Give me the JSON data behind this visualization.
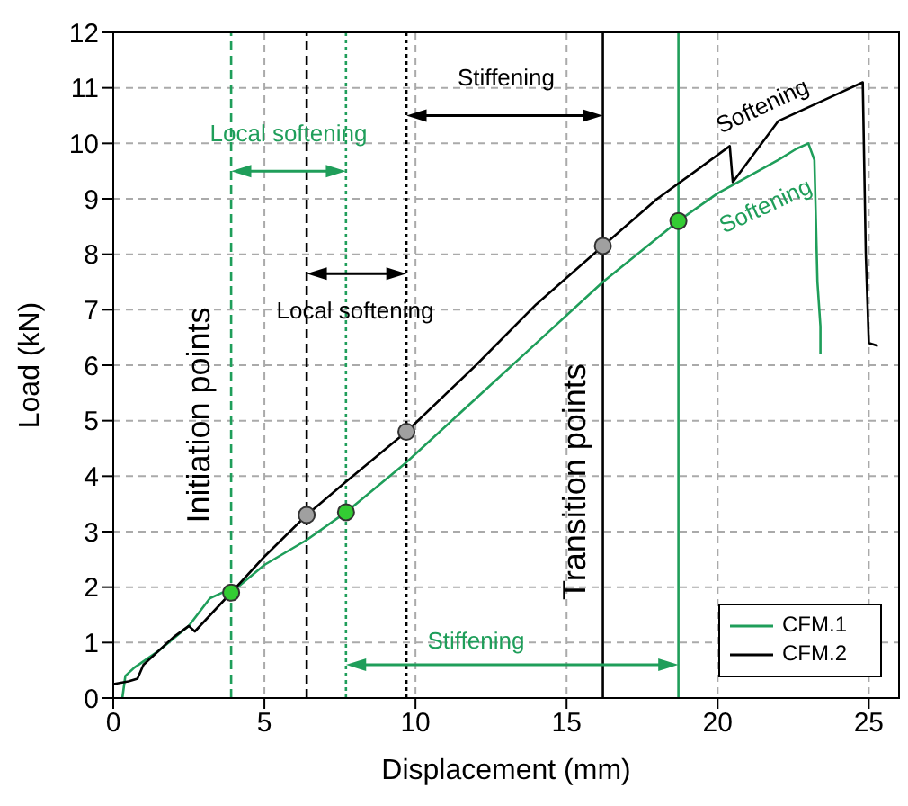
{
  "chart_data": {
    "type": "line",
    "xlabel": "Displacement (mm)",
    "ylabel": "Load (kN)",
    "xlim": [
      0,
      26
    ],
    "xticks": [
      0,
      5,
      10,
      15,
      20,
      25
    ],
    "ylim": [
      0,
      12
    ],
    "yticks": [
      0,
      1,
      2,
      3,
      4,
      5,
      6,
      7,
      8,
      9,
      10,
      11,
      12
    ],
    "grid": true,
    "legend": "bottom right",
    "marker": "none",
    "line_style": "solid",
    "series": [
      {
        "name": "CFM.1",
        "color": "#1f9e5a",
        "x": [
          0.3,
          0.4,
          0.7,
          1.5,
          2.5,
          3.2,
          3.6,
          3.9,
          5,
          6.4,
          7.7,
          9.7,
          12,
          14,
          16.2,
          18.7,
          20,
          22,
          22.6,
          23.0,
          23.2,
          23.3,
          23.4,
          23.4
        ],
        "values": [
          0,
          0.4,
          0.55,
          0.85,
          1.3,
          1.8,
          1.9,
          1.9,
          2.4,
          2.85,
          3.35,
          4.25,
          5.4,
          6.4,
          7.5,
          8.6,
          9.1,
          9.7,
          9.9,
          10.0,
          9.7,
          7.5,
          6.7,
          6.2
        ]
      },
      {
        "name": "CFM.2",
        "color": "#000000",
        "x": [
          0,
          0.5,
          0.8,
          1,
          2,
          2.5,
          2.7,
          3.9,
          5,
          6.4,
          7.7,
          9.7,
          12,
          14,
          16.2,
          18,
          20.4,
          20.5,
          22,
          24,
          24.8,
          24.9,
          25.0,
          25.3
        ],
        "values": [
          0.25,
          0.3,
          0.35,
          0.6,
          1.1,
          1.3,
          1.2,
          1.9,
          2.55,
          3.3,
          3.9,
          4.8,
          6.0,
          7.1,
          8.15,
          9.0,
          9.95,
          9.3,
          10.4,
          10.9,
          11.1,
          8.0,
          6.4,
          6.35
        ]
      },
      {
        "type": "scatter",
        "color": "#33cc33",
        "marker": "circle",
        "x": [
          3.9,
          7.7,
          18.7
        ],
        "values": [
          1.9,
          3.35,
          8.6
        ]
      },
      {
        "type": "scatter",
        "color": "#a0a0a0",
        "marker": "circle",
        "x": [
          6.4,
          9.7,
          16.2
        ],
        "values": [
          3.3,
          4.8,
          8.15
        ]
      }
    ],
    "ref_lines": [
      {
        "axis": "x",
        "value": 3.9,
        "color": "#1f9e5a",
        "line_style": "dashed"
      },
      {
        "axis": "x",
        "value": 6.4,
        "color": "#000000",
        "line_style": "dashed"
      },
      {
        "axis": "x",
        "value": 7.7,
        "color": "#1f9e5a",
        "line_style": "dotted"
      },
      {
        "axis": "x",
        "value": 9.7,
        "color": "#000000",
        "line_style": "dotted"
      },
      {
        "axis": "x",
        "value": 16.2,
        "color": "#000000",
        "line_style": "solid"
      },
      {
        "axis": "x",
        "value": 18.7,
        "color": "#1f9e5a",
        "line_style": "solid"
      }
    ],
    "annotations": [
      "Local softening",
      "Local softening",
      "Stiffening",
      "Stiffening",
      "Softening",
      "Softening",
      "Initiation points",
      "Transition points"
    ]
  }
}
